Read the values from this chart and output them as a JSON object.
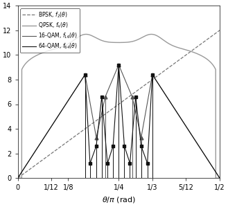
{
  "title": "",
  "xlabel": "$\\theta/\\pi$ (rad)",
  "ylabel": "",
  "xlim": [
    0,
    0.5
  ],
  "ylim": [
    0,
    14
  ],
  "yticks": [
    0,
    2,
    4,
    6,
    8,
    10,
    12,
    14
  ],
  "xticks": [
    0,
    0.08333,
    0.125,
    0.25,
    0.33333,
    0.41667,
    0.5
  ],
  "xtick_labels": [
    "0",
    "1/12",
    "1/8",
    "1/4",
    "1/3",
    "5/12",
    "1/2"
  ],
  "legend": [
    "BPSK, $f_2(\\theta)$",
    "QPSK, $f_4(\\theta)$",
    "16-QAM, $f_{16}(\\theta)$",
    "64-QAM, $f_{64}(\\theta)$"
  ],
  "bpsk_color": "#777777",
  "qpsk_color": "#999999",
  "qam16_color": "#555555",
  "qam64_color": "#111111",
  "figsize": [
    3.29,
    2.99
  ],
  "dpi": 100,
  "peaks16_x": [
    0.16667,
    0.19444,
    0.21667,
    0.25,
    0.28333,
    0.30556,
    0.33333
  ],
  "peaks16_y": [
    8.4,
    3.3,
    6.6,
    9.2,
    6.6,
    3.3,
    8.4
  ],
  "peaks64_x": [
    0.16667,
    0.179,
    0.1944,
    0.208,
    0.2222,
    0.236,
    0.25,
    0.264,
    0.2778,
    0.292,
    0.3056,
    0.321,
    0.33333
  ],
  "peaks64_y": [
    8.4,
    1.2,
    2.6,
    6.6,
    1.2,
    2.6,
    9.2,
    2.6,
    1.2,
    6.6,
    2.6,
    1.2,
    8.4
  ]
}
